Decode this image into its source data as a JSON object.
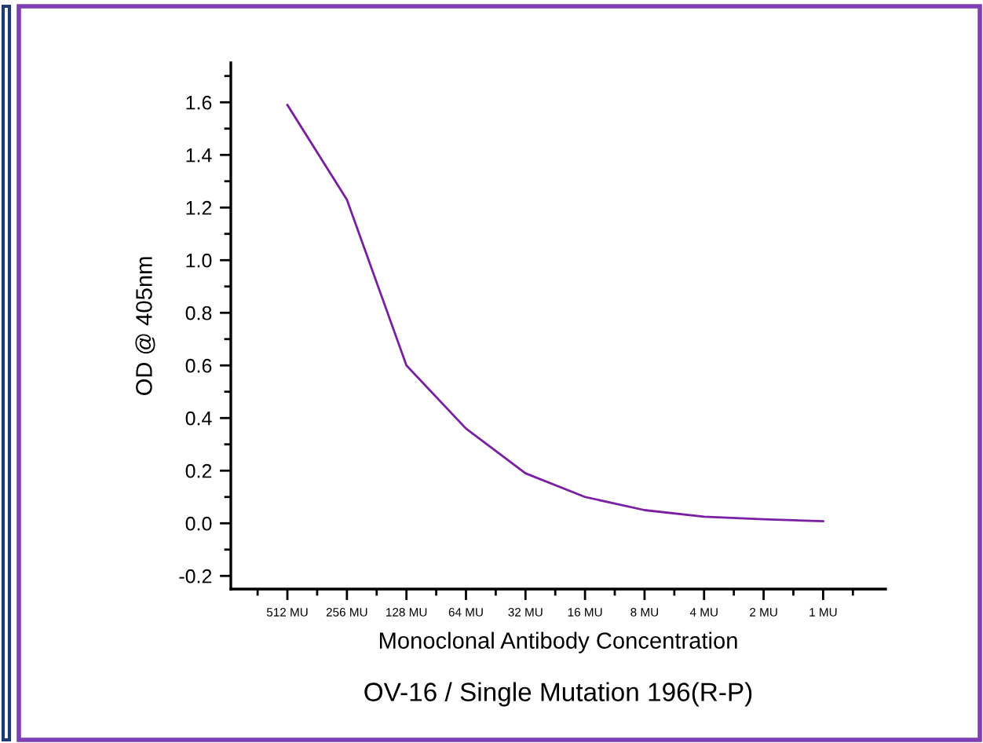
{
  "chart_data": {
    "type": "line",
    "title": "OV-16 / Single Mutation 196(R-P)",
    "xlabel": "Monoclonal Antibody Concentration",
    "ylabel": "OD @ 405nm",
    "categories": [
      "512 MU",
      "256 MU",
      "128 MU",
      "64 MU",
      "32 MU",
      "16 MU",
      "8 MU",
      "4 MU",
      "2 MU",
      "1 MU"
    ],
    "series": [
      {
        "color": "#7b1fa2",
        "values": [
          1.59,
          1.23,
          0.6,
          0.36,
          0.19,
          0.1,
          0.05,
          0.025,
          0.015,
          0.008
        ]
      }
    ],
    "ylim": [
      -0.25,
      1.75
    ],
    "yticks": [
      {
        "value": -0.2,
        "label": "-0.2"
      },
      {
        "value": 0.0,
        "label": "0.0"
      },
      0.2,
      0.4,
      0.6,
      0.8,
      {
        "value": 1.0,
        "label": "1.0"
      },
      1.2,
      1.4,
      1.6
    ],
    "grid": false,
    "legend": false,
    "marker": "none",
    "line_style": "solid"
  }
}
